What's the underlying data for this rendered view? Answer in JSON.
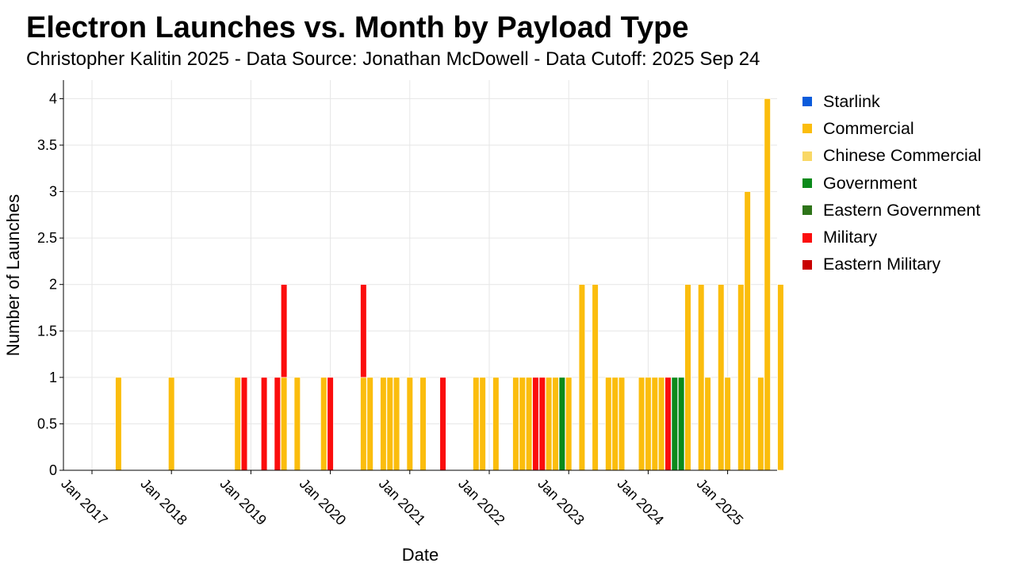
{
  "chart_data": {
    "type": "bar",
    "stacked": true,
    "title": "Electron Launches vs. Month by Payload Type",
    "subtitle": "Christopher Kalitin 2025 - Data Source: Jonathan McDowell - Data Cutoff: 2025 Sep 24",
    "xlabel": "Date",
    "ylabel": "Number of Launches",
    "ylim": [
      0,
      4.2
    ],
    "yticks": [
      "0",
      "0.5",
      "1",
      "1.5",
      "2",
      "2.5",
      "3",
      "3.5",
      "4"
    ],
    "xticks": [
      "Jan 2017",
      "Jan 2018",
      "Jan 2019",
      "Jan 2020",
      "Jan 2021",
      "Jan 2022",
      "Jan 2023",
      "Jan 2024",
      "Jan 2025"
    ],
    "grid": true,
    "legend_position": "right",
    "series": [
      {
        "name": "Starlink",
        "color": "#0a5bdb",
        "points": []
      },
      {
        "name": "Commercial",
        "color": "#fbbd0d",
        "points": [
          [
            "2017-05",
            1
          ],
          [
            "2018-01",
            1
          ],
          [
            "2018-11",
            1
          ],
          [
            "2019-06",
            1
          ],
          [
            "2019-08",
            1
          ],
          [
            "2019-12",
            1
          ],
          [
            "2020-06",
            1
          ],
          [
            "2020-07",
            1
          ],
          [
            "2020-09",
            1
          ],
          [
            "2020-10",
            1
          ],
          [
            "2020-11",
            1
          ],
          [
            "2021-01",
            1
          ],
          [
            "2021-03",
            1
          ],
          [
            "2021-11",
            1
          ],
          [
            "2021-12",
            1
          ],
          [
            "2022-02",
            1
          ],
          [
            "2022-05",
            1
          ],
          [
            "2022-06",
            1
          ],
          [
            "2022-07",
            1
          ],
          [
            "2022-10",
            1
          ],
          [
            "2022-11",
            1
          ],
          [
            "2023-01",
            1
          ],
          [
            "2023-03",
            2
          ],
          [
            "2023-05",
            2
          ],
          [
            "2023-07",
            1
          ],
          [
            "2023-08",
            1
          ],
          [
            "2023-09",
            1
          ],
          [
            "2023-12",
            1
          ],
          [
            "2024-01",
            1
          ],
          [
            "2024-02",
            1
          ],
          [
            "2024-03",
            1
          ],
          [
            "2024-07",
            2
          ],
          [
            "2024-09",
            2
          ],
          [
            "2024-10",
            1
          ],
          [
            "2024-12",
            2
          ],
          [
            "2025-01",
            1
          ],
          [
            "2025-03",
            2
          ],
          [
            "2025-04",
            3
          ],
          [
            "2025-06",
            1
          ],
          [
            "2025-07",
            4
          ],
          [
            "2025-09",
            2
          ]
        ]
      },
      {
        "name": "Chinese Commercial",
        "color": "#f9d866",
        "points": []
      },
      {
        "name": "Government",
        "color": "#0b8a1b",
        "points": [
          [
            "2022-12",
            1
          ],
          [
            "2024-05",
            1
          ],
          [
            "2024-06",
            1
          ]
        ]
      },
      {
        "name": "Eastern Government",
        "color": "#2e7419",
        "points": []
      },
      {
        "name": "Military",
        "color": "#fb0d0d",
        "points": [
          [
            "2018-12",
            1
          ],
          [
            "2019-03",
            1
          ],
          [
            "2019-05",
            1
          ],
          [
            "2019-06",
            1
          ],
          [
            "2020-01",
            1
          ],
          [
            "2020-06",
            1
          ],
          [
            "2021-06",
            1
          ],
          [
            "2022-08",
            1
          ],
          [
            "2022-09",
            1
          ],
          [
            "2024-04",
            1
          ]
        ]
      },
      {
        "name": "Eastern Military",
        "color": "#c90000",
        "points": []
      }
    ]
  }
}
